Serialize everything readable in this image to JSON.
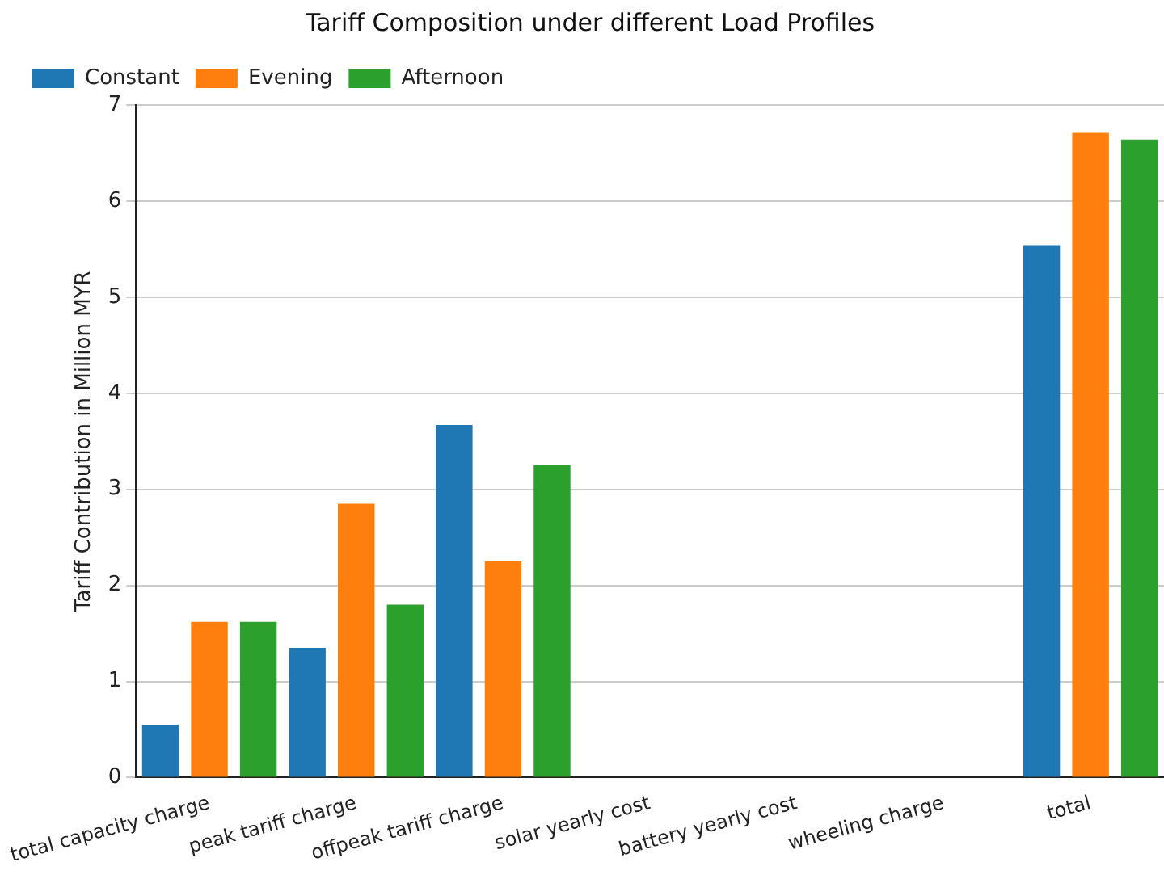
{
  "chart_data": {
    "type": "bar",
    "title": "Tariff Composition under different Load Profiles",
    "ylabel": "Tariff Contribution in Million MYR",
    "categories": [
      "total capacity charge",
      "peak tariff charge",
      "offpeak tariff charge",
      "solar yearly cost",
      "battery yearly cost",
      "wheeling charge",
      "total"
    ],
    "series": [
      {
        "name": "Constant",
        "color": "#1f77b4",
        "values": [
          0.55,
          1.35,
          3.67,
          0,
          0,
          0,
          5.54
        ]
      },
      {
        "name": "Evening",
        "color": "#ff7f0e",
        "values": [
          1.62,
          2.85,
          2.25,
          0,
          0,
          0,
          6.71
        ]
      },
      {
        "name": "Afternoon",
        "color": "#2ca02c",
        "values": [
          1.62,
          1.8,
          3.25,
          0,
          0,
          0,
          6.64
        ]
      }
    ],
    "ylim": [
      0,
      7
    ],
    "yticks": [
      0,
      1,
      2,
      3,
      4,
      5,
      6,
      7
    ],
    "grid": "y",
    "legend": "top left"
  }
}
